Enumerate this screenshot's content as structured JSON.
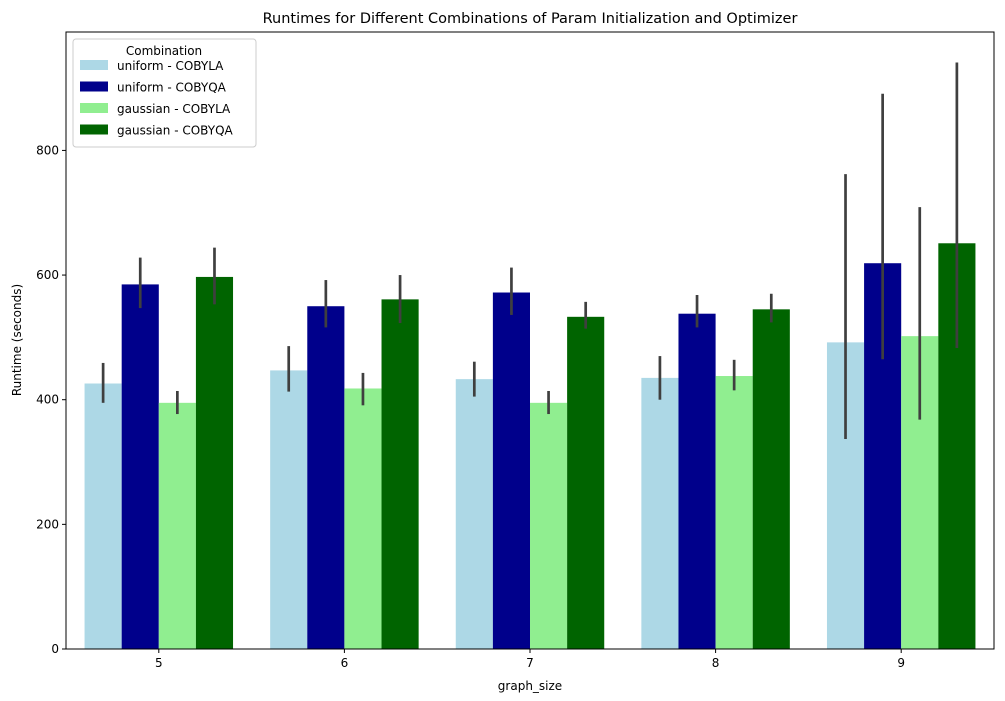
{
  "chart_data": {
    "type": "bar",
    "title": "Runtimes for Different Combinations of Param Initialization and Optimizer",
    "xlabel": "graph_size",
    "ylabel": "Runtime (seconds)",
    "categories": [
      "5",
      "6",
      "7",
      "8",
      "9"
    ],
    "ylim": [
      0,
      990
    ],
    "yticks": [
      0,
      200,
      400,
      600,
      800
    ],
    "grid": false,
    "legend": {
      "title": "Combination",
      "placement": "top-left"
    },
    "series": [
      {
        "name": "uniform - COBYLA",
        "color": "#add8e6",
        "values": [
          426,
          447,
          433,
          435,
          492
        ],
        "err_low": [
          395,
          413,
          405,
          400,
          337
        ],
        "err_high": [
          459,
          486,
          461,
          470,
          762
        ]
      },
      {
        "name": "uniform - COBYQA",
        "color": "#00008b",
        "values": [
          585,
          550,
          572,
          538,
          619
        ],
        "err_low": [
          547,
          516,
          536,
          516,
          465
        ],
        "err_high": [
          628,
          592,
          612,
          568,
          891
        ]
      },
      {
        "name": "gaussian - COBYLA",
        "color": "#90ee90",
        "values": [
          395,
          418,
          395,
          438,
          502
        ],
        "err_low": [
          377,
          391,
          377,
          415,
          368
        ],
        "err_high": [
          414,
          443,
          414,
          464,
          709
        ]
      },
      {
        "name": "gaussian - COBYQA",
        "color": "#006400",
        "values": [
          597,
          561,
          533,
          545,
          651
        ],
        "err_low": [
          553,
          523,
          514,
          524,
          483
        ],
        "err_high": [
          644,
          600,
          557,
          570,
          941
        ]
      }
    ]
  }
}
